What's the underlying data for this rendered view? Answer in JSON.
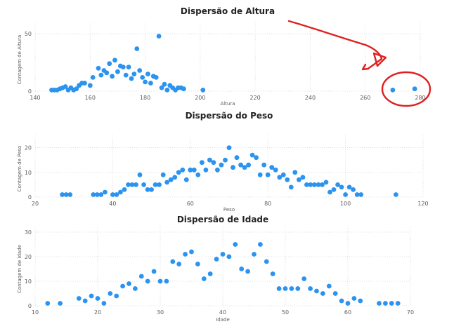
{
  "colors": {
    "point": "#2b93f0",
    "annotation": "#e02020"
  },
  "chart_data": [
    {
      "type": "scatter",
      "title": "Dispersão de Altura",
      "xlabel": "Altura",
      "ylabel": "Contagem de Altura",
      "xlim": [
        140,
        280
      ],
      "ylim": [
        0,
        55
      ],
      "xticks": [
        140,
        160,
        180,
        200,
        220,
        240,
        260,
        280
      ],
      "yticks": [
        0,
        50
      ],
      "grid": true,
      "series": [
        {
          "points": [
            [
              146,
              1
            ],
            [
              147,
              1
            ],
            [
              148,
              1
            ],
            [
              149,
              2
            ],
            [
              150,
              3
            ],
            [
              151,
              4
            ],
            [
              152,
              1
            ],
            [
              153,
              3
            ],
            [
              154,
              1
            ],
            [
              155,
              2
            ],
            [
              156,
              5
            ],
            [
              157,
              7
            ],
            [
              158,
              7
            ],
            [
              160,
              5
            ],
            [
              161,
              12
            ],
            [
              163,
              20
            ],
            [
              164,
              14
            ],
            [
              165,
              18
            ],
            [
              166,
              16
            ],
            [
              167,
              24
            ],
            [
              168,
              13
            ],
            [
              169,
              27
            ],
            [
              170,
              17
            ],
            [
              171,
              22
            ],
            [
              172,
              21
            ],
            [
              173,
              14
            ],
            [
              174,
              21
            ],
            [
              175,
              11
            ],
            [
              176,
              15
            ],
            [
              177,
              37
            ],
            [
              178,
              18
            ],
            [
              179,
              12
            ],
            [
              180,
              8
            ],
            [
              181,
              15
            ],
            [
              182,
              7
            ],
            [
              183,
              13
            ],
            [
              184,
              12
            ],
            [
              185,
              48
            ],
            [
              186,
              3
            ],
            [
              187,
              6
            ],
            [
              188,
              1
            ],
            [
              189,
              5
            ],
            [
              190,
              3
            ],
            [
              191,
              1
            ],
            [
              192,
              3
            ],
            [
              193,
              3
            ],
            [
              194,
              2
            ],
            [
              201,
              1
            ],
            [
              270,
              1
            ],
            [
              278,
              2
            ]
          ]
        }
      ]
    },
    {
      "type": "scatter",
      "title": "Dispersão do Peso",
      "xlabel": "Peso",
      "ylabel": "Contagem de Peso",
      "xlim": [
        20,
        120
      ],
      "ylim": [
        0,
        23
      ],
      "xticks": [
        20,
        40,
        60,
        80,
        100,
        120
      ],
      "yticks": [
        0,
        10,
        20
      ],
      "grid": true,
      "series": [
        {
          "points": [
            [
              27,
              1
            ],
            [
              28,
              1
            ],
            [
              29,
              1
            ],
            [
              35,
              1
            ],
            [
              36,
              1
            ],
            [
              37,
              1
            ],
            [
              38,
              2
            ],
            [
              40,
              1
            ],
            [
              41,
              1
            ],
            [
              42,
              2
            ],
            [
              43,
              3
            ],
            [
              44,
              5
            ],
            [
              45,
              5
            ],
            [
              46,
              5
            ],
            [
              47,
              9
            ],
            [
              48,
              5
            ],
            [
              49,
              3
            ],
            [
              50,
              3
            ],
            [
              51,
              5
            ],
            [
              52,
              5
            ],
            [
              53,
              9
            ],
            [
              54,
              6
            ],
            [
              55,
              7
            ],
            [
              56,
              8
            ],
            [
              57,
              10
            ],
            [
              58,
              11
            ],
            [
              59,
              7
            ],
            [
              60,
              11
            ],
            [
              61,
              11
            ],
            [
              62,
              9
            ],
            [
              63,
              14
            ],
            [
              64,
              11
            ],
            [
              65,
              15
            ],
            [
              66,
              14
            ],
            [
              67,
              11
            ],
            [
              68,
              13
            ],
            [
              69,
              15
            ],
            [
              70,
              20
            ],
            [
              71,
              12
            ],
            [
              72,
              16
            ],
            [
              73,
              13
            ],
            [
              74,
              12
            ],
            [
              75,
              13
            ],
            [
              76,
              17
            ],
            [
              77,
              16
            ],
            [
              78,
              9
            ],
            [
              79,
              13
            ],
            [
              80,
              9
            ],
            [
              81,
              12
            ],
            [
              82,
              11
            ],
            [
              83,
              8
            ],
            [
              84,
              9
            ],
            [
              85,
              7
            ],
            [
              86,
              4
            ],
            [
              87,
              10
            ],
            [
              88,
              7
            ],
            [
              89,
              8
            ],
            [
              90,
              5
            ],
            [
              91,
              5
            ],
            [
              92,
              5
            ],
            [
              93,
              5
            ],
            [
              94,
              5
            ],
            [
              95,
              6
            ],
            [
              96,
              2
            ],
            [
              97,
              3
            ],
            [
              98,
              5
            ],
            [
              99,
              4
            ],
            [
              100,
              1
            ],
            [
              101,
              4
            ],
            [
              102,
              3
            ],
            [
              103,
              1
            ],
            [
              104,
              1
            ],
            [
              113,
              1
            ]
          ]
        }
      ]
    },
    {
      "type": "scatter",
      "title": "Dispersão de Idade",
      "xlabel": "Idade",
      "ylabel": "Contagem de Idade",
      "xlim": [
        10,
        70
      ],
      "ylim": [
        0,
        30
      ],
      "xticks": [
        10,
        20,
        30,
        40,
        50,
        60,
        70
      ],
      "yticks": [
        0,
        10,
        20,
        30
      ],
      "grid": true,
      "series": [
        {
          "points": [
            [
              12,
              1
            ],
            [
              14,
              1
            ],
            [
              17,
              3
            ],
            [
              18,
              2
            ],
            [
              19,
              4
            ],
            [
              20,
              3
            ],
            [
              21,
              1
            ],
            [
              22,
              5
            ],
            [
              23,
              4
            ],
            [
              24,
              8
            ],
            [
              25,
              9
            ],
            [
              26,
              7
            ],
            [
              27,
              12
            ],
            [
              28,
              10
            ],
            [
              29,
              14
            ],
            [
              30,
              10
            ],
            [
              31,
              10
            ],
            [
              32,
              18
            ],
            [
              33,
              17
            ],
            [
              34,
              21
            ],
            [
              35,
              22
            ],
            [
              36,
              17
            ],
            [
              37,
              11
            ],
            [
              38,
              13
            ],
            [
              39,
              19
            ],
            [
              40,
              21
            ],
            [
              41,
              20
            ],
            [
              42,
              25
            ],
            [
              43,
              15
            ],
            [
              44,
              14
            ],
            [
              45,
              21
            ],
            [
              46,
              25
            ],
            [
              47,
              18
            ],
            [
              48,
              13
            ],
            [
              49,
              7
            ],
            [
              50,
              7
            ],
            [
              51,
              7
            ],
            [
              52,
              7
            ],
            [
              53,
              11
            ],
            [
              54,
              7
            ],
            [
              55,
              6
            ],
            [
              56,
              5
            ],
            [
              57,
              8
            ],
            [
              58,
              5
            ],
            [
              59,
              2
            ],
            [
              60,
              1
            ],
            [
              61,
              3
            ],
            [
              62,
              2
            ],
            [
              65,
              1
            ],
            [
              66,
              1
            ],
            [
              67,
              1
            ],
            [
              68,
              1
            ]
          ]
        }
      ]
    }
  ]
}
